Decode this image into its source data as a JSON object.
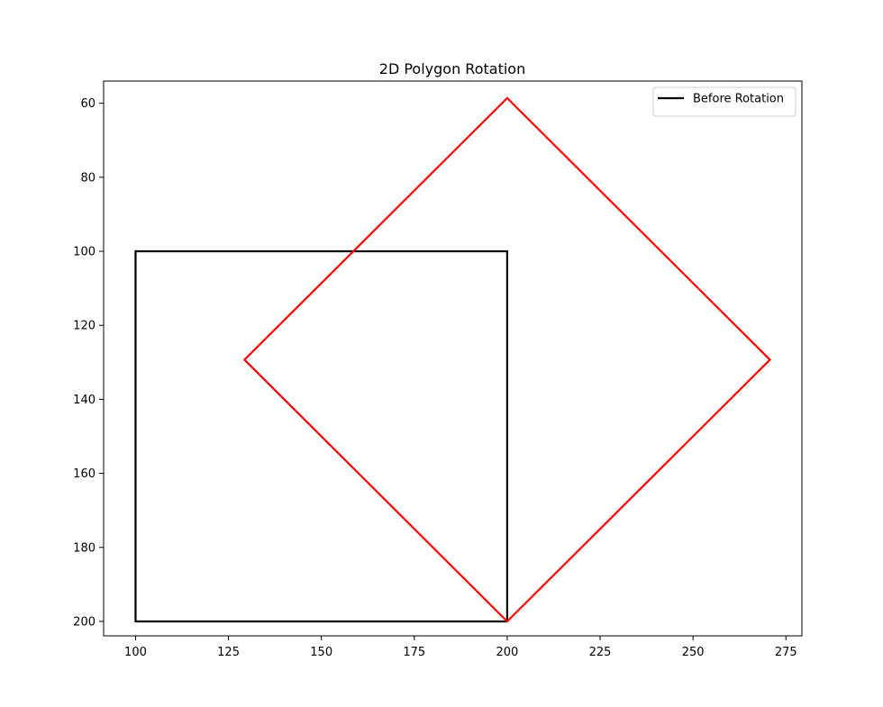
{
  "chart_data": {
    "type": "line",
    "title": "2D Polygon Rotation",
    "xlabel": "",
    "ylabel": "",
    "xlim": [
      91.4,
      279.3
    ],
    "ylim": [
      203.9,
      54.0
    ],
    "y_inverted": true,
    "grid": false,
    "legend_position": "top-right",
    "x_ticks": [
      100,
      125,
      150,
      175,
      200,
      225,
      250,
      275
    ],
    "y_ticks": [
      60,
      80,
      100,
      120,
      140,
      160,
      180,
      200
    ],
    "series": [
      {
        "name": "Before Rotation",
        "color": "#000000",
        "in_legend": true,
        "x": [
          100,
          200,
          200,
          100,
          100
        ],
        "y": [
          100,
          100,
          200,
          200,
          100
        ]
      },
      {
        "color": "#ff0000",
        "in_legend": false,
        "x": [
          200,
          270.7,
          200,
          129.3,
          200
        ],
        "y": [
          58.6,
          129.3,
          200,
          129.3,
          58.6
        ]
      }
    ]
  }
}
